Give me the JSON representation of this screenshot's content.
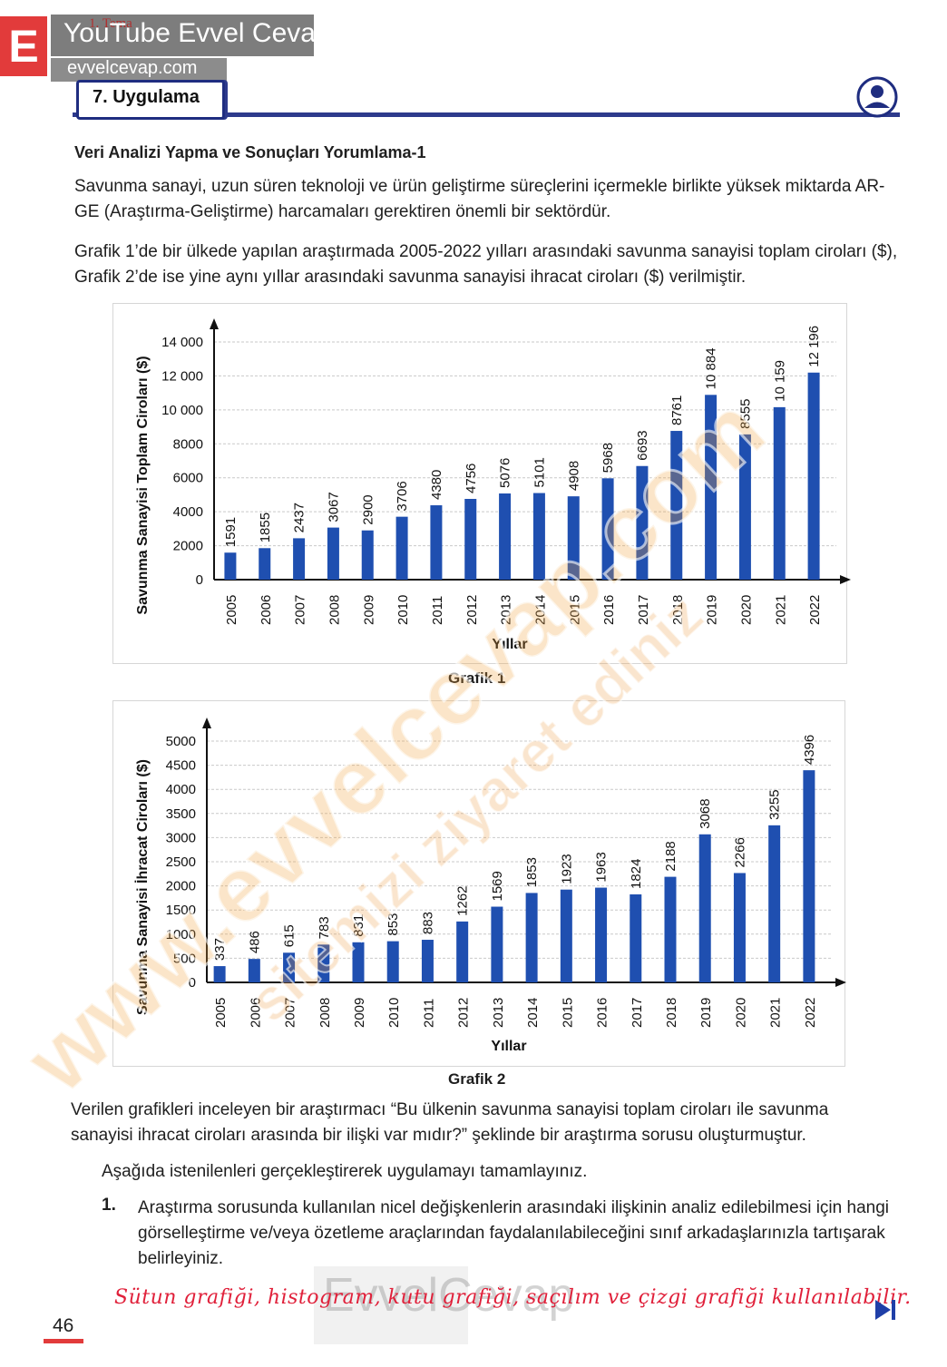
{
  "watermark": {
    "logo_letter": "E",
    "channel": "YouTube Evvel Cevap",
    "site": "evvelcevap.com",
    "diagonal_primary": "www.evvelcevap.com",
    "diagonal_secondary": "sitemizi ziyaret ediniz",
    "bottom": "EvvelCevap"
  },
  "header": {
    "tema_label": "1. Tema",
    "section_title": "7. Uygulama",
    "user_icon": "user-circle-icon"
  },
  "content": {
    "subtitle": "Veri Analizi Yapma ve Sonuçları Yorumlama-1",
    "para1": "Savunma sanayi, uzun süren teknoloji ve ürün geliştirme süreçlerini içermekle birlikte yüksek miktarda AR-GE (Araştırma-Geliştirme) harcamaları gerektiren önemli bir sektördür.",
    "para2": "Grafik 1’de bir ülkede yapılan araştırmada 2005-2022 yılları arasındaki savunma sanayisi toplam ciroları ($), Grafik 2’de ise yine aynı yıllar arasındaki savunma sanayisi ihracat ciroları ($) verilmiştir.",
    "para3": "Verilen grafikleri inceleyen bir araştırmacı “Bu ülkenin savunma sanayisi toplam ciroları ile savunma sanayisi ihracat ciroları arasında bir ilişki var mıdır?” şeklinde bir araştırma sorusu oluşturmuştur.",
    "para4": "Aşağıda istenilenleri gerçekleştirerek uygulamayı tamamlayınız.",
    "q1_num": "1.",
    "q1_text": "Araştırma sorusunda kullanılan nicel değişkenlerin arasındaki ilişkinin analiz edilebilmesi için hangi görselleştirme ve/veya özetleme araçlarından faydalanılabileceğini sınıf arkadaşlarınızla tartışarak belirleyiniz.",
    "answer": "Sütun grafiği, histogram, kutu grafiği, saçılım ve çizgi grafiği kullanılabilir.",
    "page_number": "46",
    "next_icon": "skip-next-icon"
  },
  "chart_data": [
    {
      "type": "bar",
      "caption": "Grafik 1",
      "xlabel": "Yıllar",
      "ylabel": "Savunma Sanayisi Toplam Ciroları ($)",
      "ylim": [
        0,
        14000
      ],
      "yticks": [
        0,
        2000,
        4000,
        6000,
        8000,
        10000,
        12000,
        14000
      ],
      "ytick_labels": [
        "0",
        "2000",
        "4000",
        "6000",
        "8000",
        "10 000",
        "12 000",
        "14 000"
      ],
      "grid": true,
      "bar_color": "#1f4fb0",
      "categories": [
        "2005",
        "2006",
        "2007",
        "2008",
        "2009",
        "2010",
        "2011",
        "2012",
        "2013",
        "2014",
        "2015",
        "2016",
        "2017",
        "2018",
        "2019",
        "2020",
        "2021",
        "2022"
      ],
      "values": [
        1591,
        1855,
        2437,
        3067,
        2900,
        3706,
        4380,
        4756,
        5076,
        5101,
        4908,
        5968,
        6693,
        8761,
        10884,
        8555,
        10159,
        12196
      ],
      "value_labels": [
        "1591",
        "1855",
        "2437",
        "3067",
        "2900",
        "3706",
        "4380",
        "4756",
        "5076",
        "5101",
        "4908",
        "5968",
        "6693",
        "8761",
        "10 884",
        "8555",
        "10 159",
        "12 196"
      ]
    },
    {
      "type": "bar",
      "caption": "Grafik 2",
      "xlabel": "Yıllar",
      "ylabel": "Savunma Sanayisi İhracat Ciroları ($)",
      "ylim": [
        0,
        5000
      ],
      "yticks": [
        0,
        500,
        1000,
        1500,
        2000,
        2500,
        3000,
        3500,
        4000,
        4500,
        5000
      ],
      "ytick_labels": [
        "0",
        "500",
        "1000",
        "1500",
        "2000",
        "2500",
        "3000",
        "3500",
        "4000",
        "4500",
        "5000"
      ],
      "grid": true,
      "bar_color": "#1f4fb0",
      "categories": [
        "2005",
        "2006",
        "2007",
        "2008",
        "2009",
        "2010",
        "2011",
        "2012",
        "2013",
        "2014",
        "2015",
        "2016",
        "2017",
        "2018",
        "2019",
        "2020",
        "2021",
        "2022"
      ],
      "values": [
        337,
        486,
        615,
        783,
        831,
        853,
        883,
        1262,
        1569,
        1853,
        1923,
        1963,
        1824,
        2188,
        3068,
        2266,
        3255,
        4396
      ],
      "value_labels": [
        "337",
        "486",
        "615",
        "783",
        "831",
        "853",
        "883",
        "1262",
        "1569",
        "1853",
        "1923",
        "1963",
        "1824",
        "2188",
        "3068",
        "2266",
        "3255",
        "4396"
      ]
    }
  ]
}
